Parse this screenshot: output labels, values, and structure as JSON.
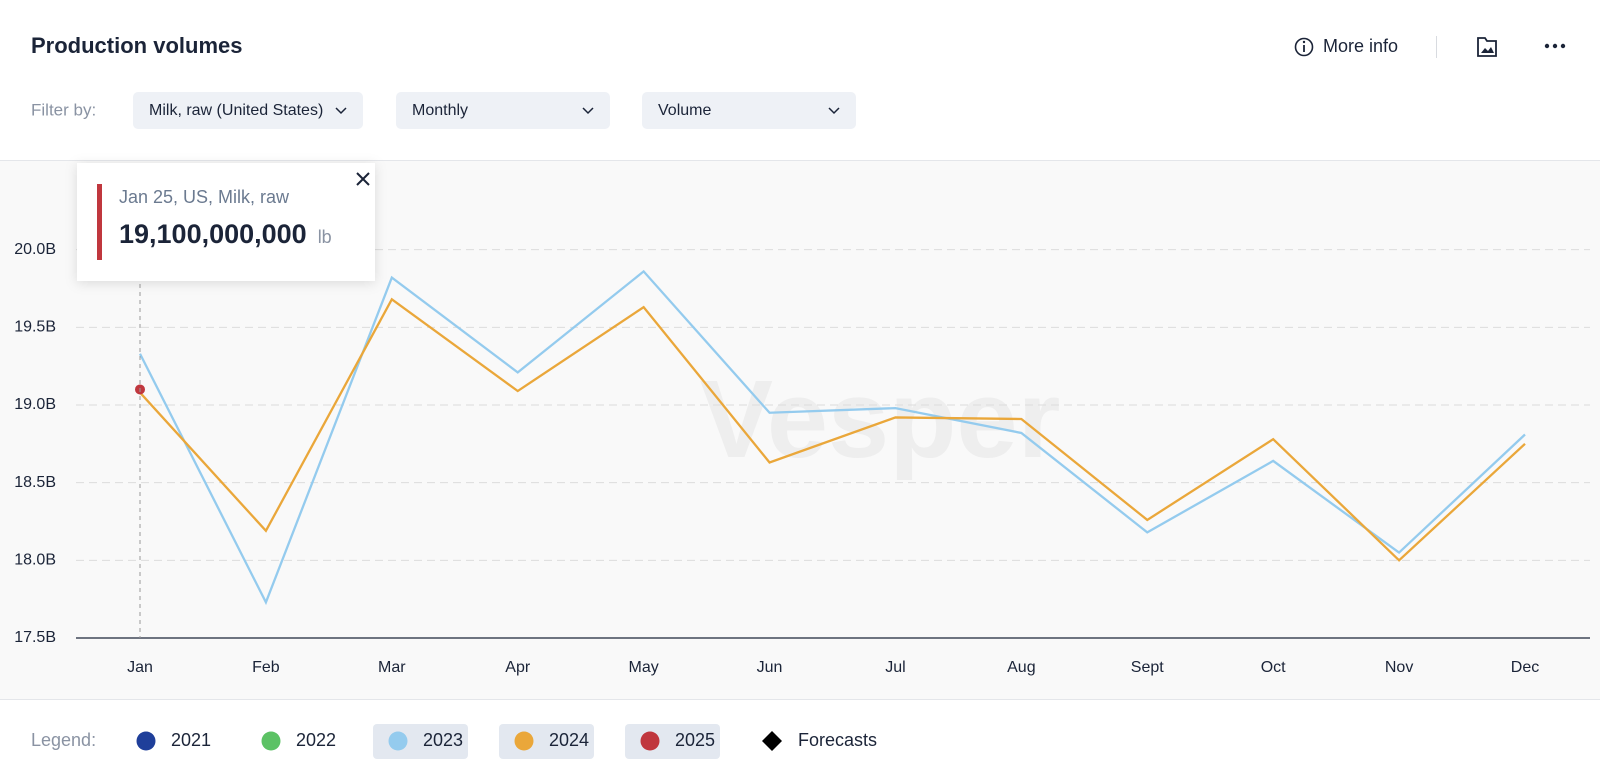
{
  "header": {
    "title": "Production volumes",
    "more_info": "More info"
  },
  "filters": {
    "label": "Filter by:",
    "options": [
      "Milk, raw (United States)",
      "Monthly",
      "Volume"
    ]
  },
  "chart_data": {
    "type": "line",
    "watermark": "Vesper",
    "categories": [
      "Jan",
      "Feb",
      "Mar",
      "Apr",
      "May",
      "Jun",
      "Jul",
      "Aug",
      "Sept",
      "Oct",
      "Nov",
      "Dec"
    ],
    "series": [
      {
        "name": "2021",
        "color": "#1f3f9a",
        "values": [
          null,
          null,
          null,
          null,
          null,
          null,
          null,
          null,
          null,
          null,
          null,
          null
        ]
      },
      {
        "name": "2022",
        "color": "#5cc265",
        "values": [
          null,
          null,
          null,
          null,
          null,
          null,
          null,
          null,
          null,
          null,
          null,
          null
        ]
      },
      {
        "name": "2023",
        "color": "#94cbee",
        "values": [
          19.33,
          17.73,
          19.82,
          19.21,
          19.86,
          18.95,
          18.98,
          18.82,
          18.18,
          18.64,
          18.05,
          18.81
        ]
      },
      {
        "name": "2024",
        "color": "#eaa73a",
        "values": [
          19.08,
          18.19,
          19.68,
          19.09,
          19.63,
          18.63,
          18.92,
          18.91,
          18.26,
          18.78,
          18.0,
          18.75
        ]
      },
      {
        "name": "2025",
        "color": "#c0373e",
        "values": [
          19.1,
          null,
          null,
          null,
          null,
          null,
          null,
          null,
          null,
          null,
          null,
          null
        ]
      }
    ],
    "ylim": [
      17.5,
      20.5
    ],
    "yticks": [
      {
        "value": 17.5,
        "label": "17.5B"
      },
      {
        "value": 18,
        "label": "18.0B"
      },
      {
        "value": 18.5,
        "label": "18.5B"
      },
      {
        "value": 19,
        "label": "19.0B"
      },
      {
        "value": 19.5,
        "label": "19.5B"
      },
      {
        "value": 20,
        "label": "20.0B"
      }
    ],
    "grid": true
  },
  "tooltip": {
    "title": "Jan 25, US, Milk, raw",
    "value": "19,100,000,000",
    "unit": "lb"
  },
  "legend": {
    "label": "Legend:",
    "forecasts": "Forecasts"
  }
}
